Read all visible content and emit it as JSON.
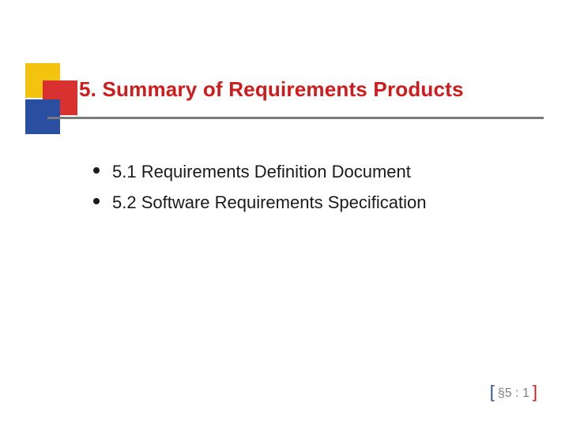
{
  "colors": {
    "yellow": "#f2c40f",
    "red": "#d93030",
    "blue": "#2b4fa0",
    "title": "#d11a1a",
    "rule": "#7a7a7a",
    "body": "#1a1a1a",
    "bullet": "#1a1a1a",
    "bracket_open": "#2b4fa0",
    "bracket_close": "#d11a1a"
  },
  "title": "5. Summary of Requirements Products",
  "bullets": [
    "5.1 Requirements Definition Document",
    "5.2 Software Requirements Specification"
  ],
  "footer": {
    "open": "[",
    "text": "§5 : 1",
    "close": "]"
  }
}
